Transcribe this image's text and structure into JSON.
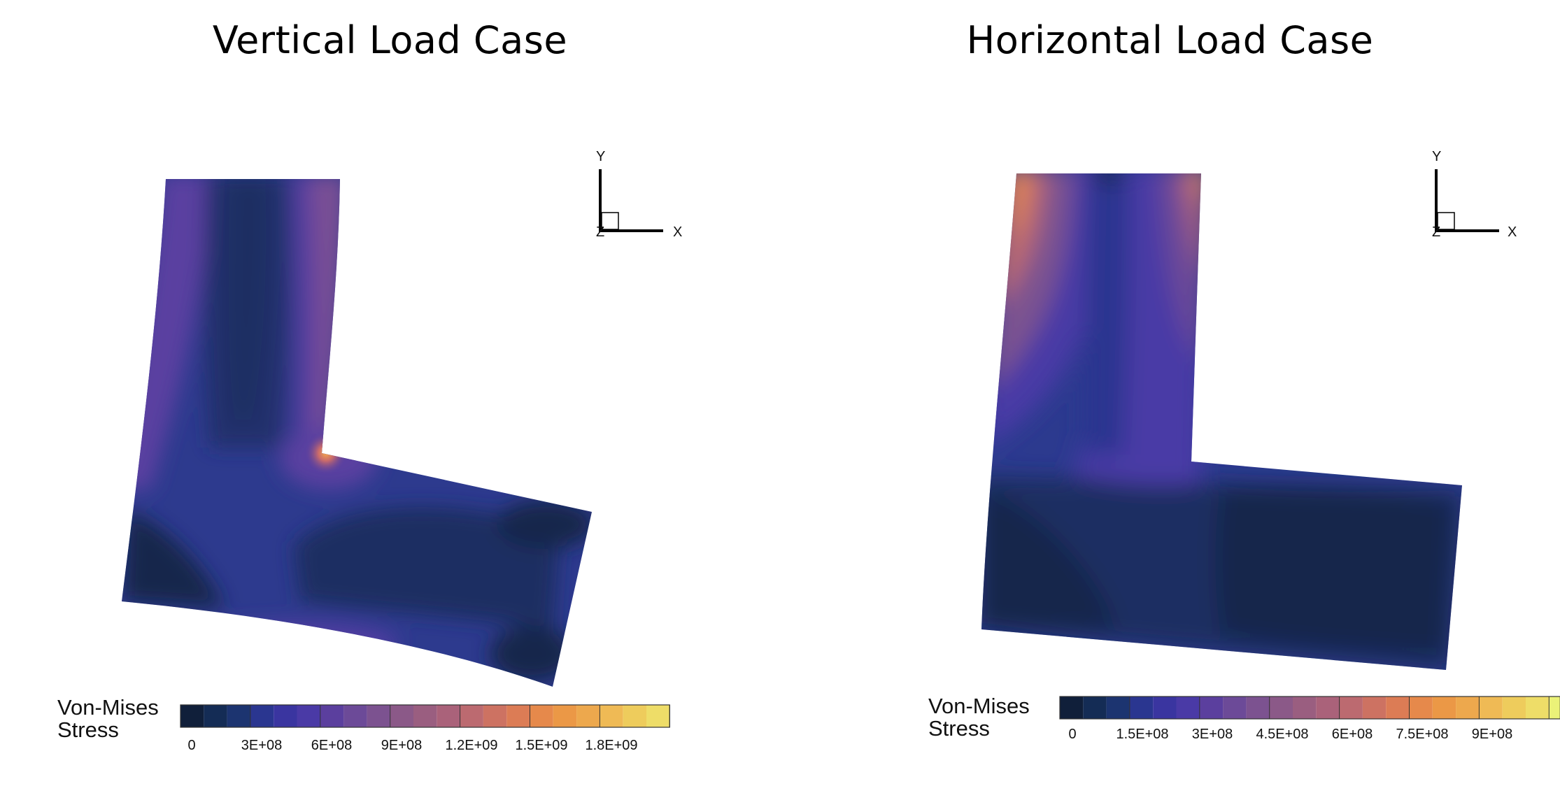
{
  "panels": [
    {
      "title": "Vertical Load Case",
      "legend_title_line1": "Von-Mises",
      "legend_title_line2": "Stress",
      "legend_ticks": [
        "0",
        "3E+08",
        "6E+08",
        "9E+08",
        "1.2E+09",
        "1.5E+09",
        "1.8E+09"
      ],
      "axes": {
        "y": "Y",
        "x": "X",
        "z": "Z"
      }
    },
    {
      "title": "Horizontal Load Case",
      "legend_title_line1": "Von-Mises",
      "legend_title_line2": "Stress",
      "legend_ticks": [
        "0",
        "1.5E+08",
        "3E+08",
        "4.5E+08",
        "6E+08",
        "7.5E+08",
        "9E+08"
      ],
      "axes": {
        "y": "Y",
        "x": "X",
        "z": "Z"
      }
    }
  ],
  "colormap": [
    "#101f3a",
    "#142c55",
    "#1c3470",
    "#2a3690",
    "#3a35a0",
    "#4a3aa6",
    "#5b3f9e",
    "#6c4a98",
    "#7c5290",
    "#8b5988",
    "#9a5e80",
    "#aa627a",
    "#bc6a70",
    "#cd7262",
    "#dc7c55",
    "#e6894b",
    "#eb9846",
    "#eda84d",
    "#efba55",
    "#eecc5c",
    "#eedd68",
    "#ebf278"
  ],
  "colors": {
    "dark": "#13264c",
    "mid": "#2c3a8f",
    "hot": "#ee9a48"
  }
}
